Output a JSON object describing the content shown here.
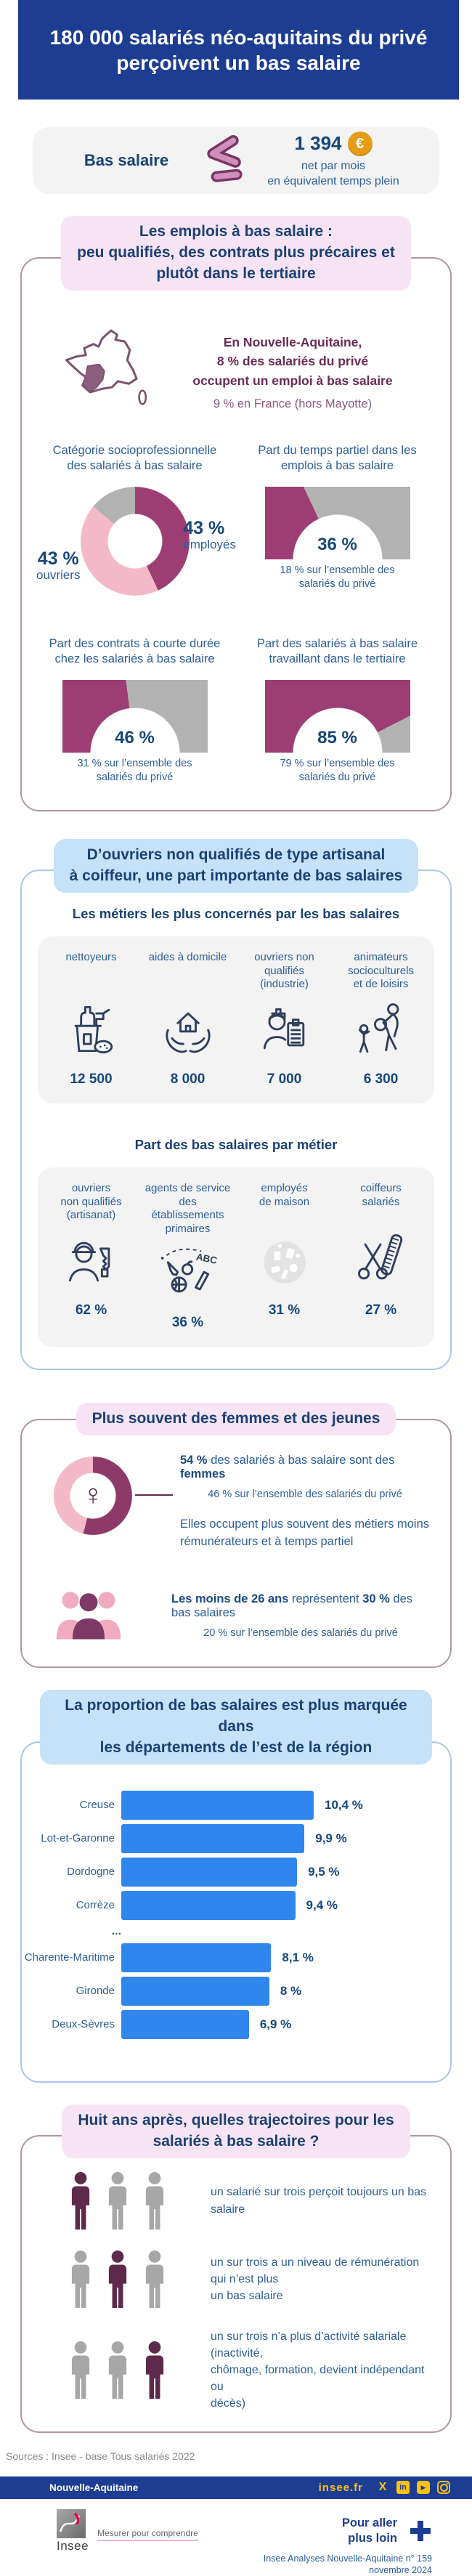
{
  "header": {
    "title": "180 000 salariés néo-aquitains du privé perçoivent un bas salaire"
  },
  "definition": {
    "label": "Bas salaire",
    "lte_icon": "≤",
    "amount": "1 394",
    "euro_icon": "€",
    "unit": "net par mois\nen équivalent temps plein"
  },
  "sections": {
    "emplois": {
      "title": "Les emplois à bas salaire :\npeu qualifiés, des contrats plus précaires et\nplutôt dans le tertiaire",
      "map_stat_bold": "En Nouvelle-Aquitaine,\n8 % des salariés du privé\noccupent un emploi à bas salaire",
      "map_stat_sub": "9 % en France (hors Mayotte)",
      "charts": [
        {
          "title": "Catégorie socioprofessionnelle\ndes salariés à bas salaire",
          "label1": "43 %",
          "label1_sub": "employés",
          "label2": "43 %",
          "label2_sub": "ouvriers"
        },
        {
          "title": "Part du temps partiel dans les\nemplois à bas salaire",
          "value": "36 %",
          "caption": "18 % sur l’ensemble des\nsalariés du privé"
        },
        {
          "title": "Part des contrats à courte durée\nchez les salariés à bas salaire",
          "value": "46 %",
          "caption": "31 % sur l’ensemble des\nsalariés du privé"
        },
        {
          "title": "Part des salariés à bas salaire\ntravaillant dans le tertiaire",
          "value": "85 %",
          "caption": "79 % sur l’ensemble des\nsalariés du privé"
        }
      ]
    },
    "metiers": {
      "title": "D’ouvriers non qualifiés de type artisanal\nà coiffeur, une part importante de bas salaires",
      "subtitle1": "Les métiers les plus concernés par les bas salaires",
      "top_count": [
        {
          "label": "nettoyeurs",
          "value": "12 500",
          "icon": "cleaning-supplies-icon"
        },
        {
          "label": "aides à domicile",
          "value": "8 000",
          "icon": "hands-house-icon"
        },
        {
          "label": "ouvriers non\nqualifiés\n(industrie)",
          "value": "7 000",
          "icon": "worker-clipboard-icon"
        },
        {
          "label": "animateurs\nsocioculturels\net de loisirs",
          "value": "6 300",
          "icon": "animator-ball-icon"
        }
      ],
      "subtitle2": "Part des bas salaires par métier",
      "share": [
        {
          "label": "ouvriers\nnon qualifiés\n(artisanat)",
          "value": "62 %",
          "icon": "artisan-saw-icon"
        },
        {
          "label": "agents de service\ndes établissements\nprimaires",
          "value": "36 %",
          "icon": "school-items-icon"
        },
        {
          "label": "employés\nde maison",
          "value": "31 %",
          "icon": "household-items-icon"
        },
        {
          "label": "coiffeurs\nsalariés",
          "value": "27 %",
          "icon": "scissors-comb-icon"
        }
      ]
    },
    "femmes_jeunes": {
      "title": "Plus souvent des femmes et des jeunes",
      "women_pct": "54 %",
      "women_mid": " des salariés à bas salaire sont des ",
      "women_bold": "femmes",
      "women_sub": "46 % sur l’ensemble des salariés du privé",
      "women_para": "Elles occupent plus souvent des métiers moins\nrémunérateurs et à temps partiel",
      "female_symbol": "♀",
      "youth_bold1": "Les moins de 26 ans",
      "youth_mid": " représentent ",
      "youth_bold2": "30 %",
      "youth_tail": " des bas salaires",
      "youth_sub": "20 % sur l’ensemble des salariés du privé"
    },
    "departements": {
      "title": "La proportion de bas salaires est plus marquée dans\nles départements de l’est de la région",
      "ellipsis": "..."
    },
    "trajectoires": {
      "title": "Huit ans après, quelles trajectoires pour les\nsalariés à bas salaire ?",
      "rows": [
        {
          "text": "un salarié sur trois perçoit toujours un bas salaire"
        },
        {
          "text": "un sur trois a un niveau de rémunération qui n’est plus\nun bas salaire"
        },
        {
          "text": "un sur trois n’a plus d’activité salariale (inactivité,\nchômage, formation, devient indépendant ou\ndécès)"
        }
      ]
    }
  },
  "footer": {
    "sources": "Sources : Insee - base Tous salariés 2022",
    "region": "Nouvelle-Aquitaine",
    "site": "insee.fr",
    "social": {
      "x": "X",
      "linkedin": "in",
      "youtube": "▶",
      "instagram": ""
    },
    "logo_text": "Insee",
    "tagline": "Mesurer pour comprendre",
    "more": "Pour aller\nplus loin",
    "ref": "Insee Analyses Nouvelle-Aquitaine n° 159\nnovembre 2024"
  },
  "colors": {
    "header_navy": "#1d3d92",
    "title_navy": "#1b4173",
    "text_blue": "#2e5e97",
    "number_navy": "#16477b",
    "plum": "#9c3d73",
    "dark_plum": "#692c52",
    "light_pink": "#f4b9c8",
    "grey": "#b2b2b2",
    "bar_blue": "#2f86ec",
    "yellow": "#ffc20a",
    "bubble_pink": "#f6e4f5",
    "bubble_blue": "#c6e2f9"
  },
  "chart_data": [
    {
      "type": "pie",
      "title": "Catégorie socioprofessionnelle des salariés à bas salaire",
      "labels": [
        "employés",
        "ouvriers",
        "autres"
      ],
      "values": [
        43,
        43,
        14
      ],
      "colors": [
        "#9c3d73",
        "#f4b9c8",
        "#b2b2b2"
      ],
      "unit": "%",
      "shape": "donut"
    },
    {
      "type": "pie",
      "title": "Part du temps partiel dans les emplois à bas salaire",
      "value": 36,
      "unit": "%",
      "shape": "half-donut-gauge",
      "comparison": "18 % sur l’ensemble des salariés du privé",
      "color": "#9c3d73"
    },
    {
      "type": "pie",
      "title": "Part des contrats à courte durée chez les salariés à bas salaire",
      "value": 46,
      "unit": "%",
      "shape": "half-donut-gauge",
      "comparison": "31 % sur l’ensemble des salariés du privé",
      "color": "#9c3d73"
    },
    {
      "type": "pie",
      "title": "Part des salariés à bas salaire travaillant dans le tertiaire",
      "value": 85,
      "unit": "%",
      "shape": "half-donut-gauge",
      "comparison": "79 % sur l’ensemble des salariés du privé",
      "color": "#9c3d73"
    },
    {
      "type": "table",
      "title": "Les métiers les plus concernés par les bas salaires",
      "categories": [
        "nettoyeurs",
        "aides à domicile",
        "ouvriers non qualifiés (industrie)",
        "animateurs socioculturels et de loisirs"
      ],
      "values": [
        12500,
        8000,
        7000,
        6300
      ]
    },
    {
      "type": "table",
      "title": "Part des bas salaires par métier",
      "categories": [
        "ouvriers non qualifiés (artisanat)",
        "agents de service des établissements primaires",
        "employés de maison",
        "coiffeurs salariés"
      ],
      "values": [
        62,
        36,
        31,
        27
      ],
      "unit": "%"
    },
    {
      "type": "pie",
      "title": "Part des femmes parmi les salariés à bas salaire",
      "labels": [
        "femmes",
        "autres"
      ],
      "values": [
        54,
        46
      ],
      "colors": [
        "#8e3a68",
        "#f4b9c8"
      ],
      "unit": "%",
      "shape": "donut",
      "comparison": "46 % sur l’ensemble des salariés du privé"
    },
    {
      "type": "pictogram",
      "title": "Part des moins de 26 ans dans les bas salaires",
      "value": 30,
      "unit": "%",
      "comparison": "20 % sur l’ensemble des salariés du privé"
    },
    {
      "type": "bar",
      "orientation": "horizontal",
      "title": "La proportion de bas salaires est plus marquée dans les départements de l’est de la région",
      "categories": [
        "Creuse",
        "Lot-et-Garonne",
        "Dordogne",
        "Corrèze",
        "Charente-Maritime",
        "Gironde",
        "Deux-Sèvres"
      ],
      "values": [
        10.4,
        9.9,
        9.5,
        9.4,
        8.1,
        8,
        6.9
      ],
      "display_values": [
        "10,4 %",
        "9,9 %",
        "9,5 %",
        "9,4 %",
        "8,1 %",
        "8 %",
        "6,9 %"
      ],
      "xlim": [
        0,
        10.4
      ],
      "color": "#2f86ec",
      "truncated_between": [
        "Corrèze",
        "Charente-Maritime"
      ]
    },
    {
      "type": "pictogram",
      "title": "Huit ans après, quelles trajectoires pour les salariés à bas salaire ?",
      "rows": [
        {
          "fraction": "1/3",
          "text": "un salarié sur trois perçoit toujours un bas salaire"
        },
        {
          "fraction": "1/3",
          "text": "un sur trois a un niveau de rémunération qui n’est plus un bas salaire"
        },
        {
          "fraction": "1/3",
          "text": "un sur trois n’a plus d’activité salariale (inactivité, chômage, formation, devient indépendant ou décès)"
        }
      ]
    }
  ]
}
